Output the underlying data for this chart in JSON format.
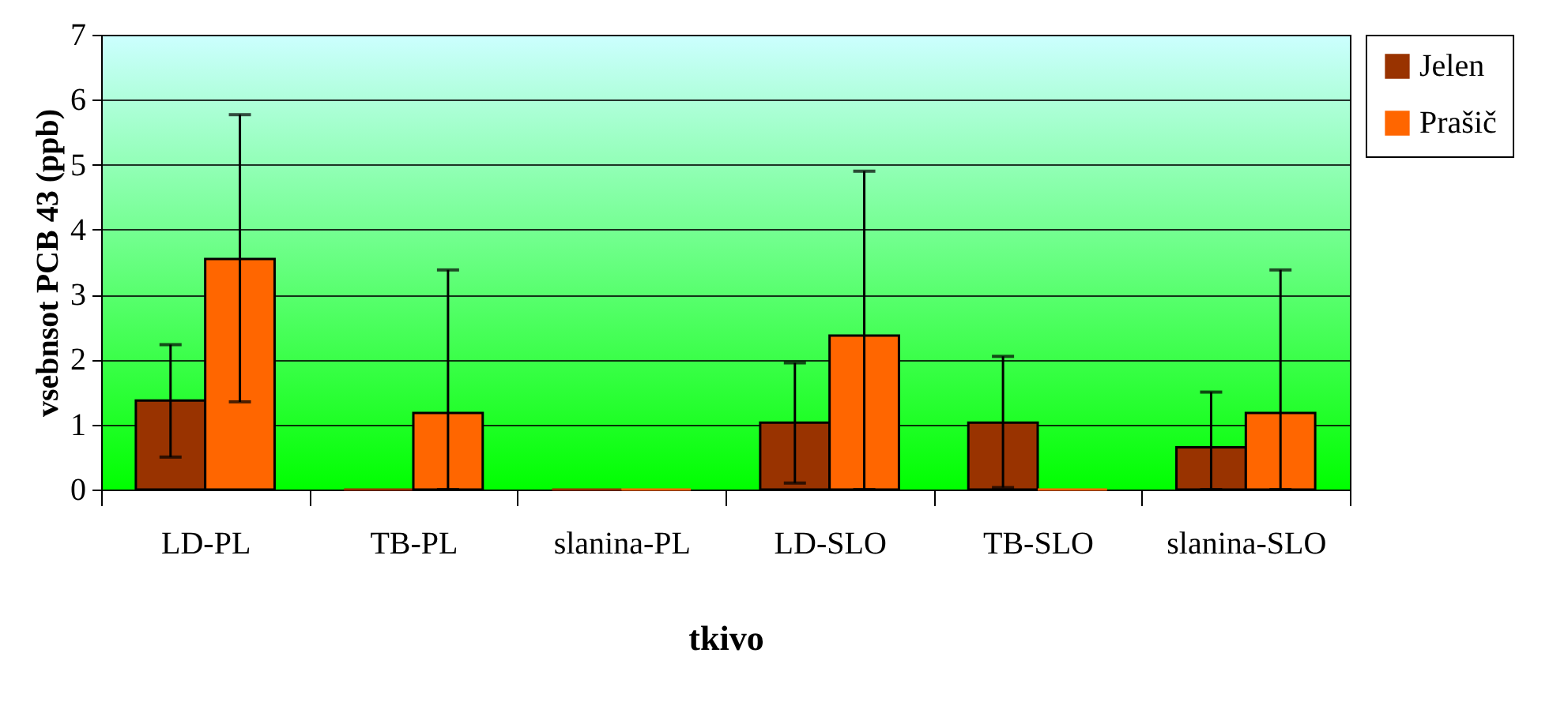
{
  "chart_data": {
    "type": "bar",
    "xlabel": "tkivo",
    "ylabel": "vsebnsot PCB 43 (ppb)",
    "categories": [
      "LD-PL",
      "TB-PL",
      "slanina-PL",
      "LD-SLO",
      "TB-SLO",
      "slanina-SLO"
    ],
    "series": [
      {
        "name": "Jelen",
        "color": "#993300",
        "values": [
          1.37,
          0,
          0,
          1.03,
          1.03,
          0.65
        ],
        "errors": [
          [
            0.5,
            2.23
          ],
          null,
          null,
          [
            0.1,
            1.95
          ],
          [
            0.03,
            2.05
          ],
          [
            0,
            1.5
          ]
        ]
      },
      {
        "name": "Prašič",
        "color": "#ff6600",
        "values": [
          3.55,
          1.18,
          0,
          2.37,
          0,
          1.18
        ],
        "errors": [
          [
            1.35,
            5.77
          ],
          [
            0,
            3.38
          ],
          null,
          [
            0,
            4.9
          ],
          null,
          [
            0,
            3.38
          ]
        ]
      }
    ],
    "ylim": [
      0,
      7
    ],
    "yticks": [
      0,
      1,
      2,
      3,
      4,
      5,
      6,
      7
    ],
    "grid": "y",
    "legend": "right"
  }
}
